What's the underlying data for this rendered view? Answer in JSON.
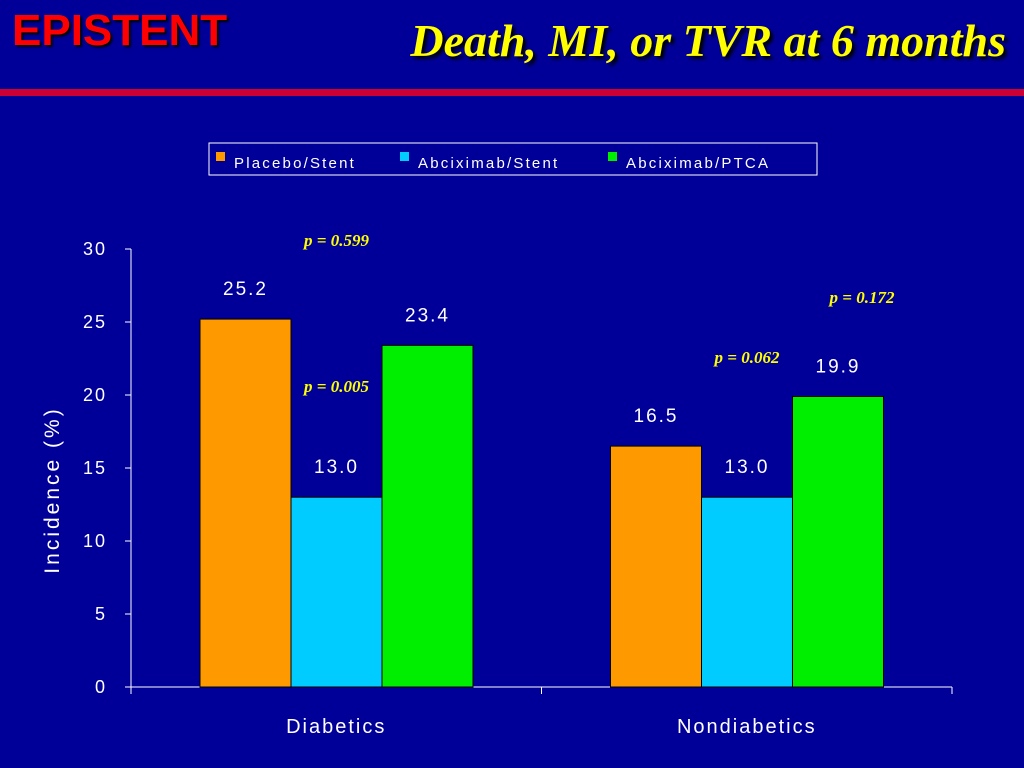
{
  "header": {
    "brand": "EPISTENT",
    "title": "Death, MI, or TVR at 6 months"
  },
  "colors": {
    "background": "#000099",
    "brand": "#ff0000",
    "title": "#ffff00",
    "rule": "#cc0033",
    "text": "#ffffff",
    "annotation": "#ffff00"
  },
  "chart_data": {
    "type": "bar",
    "title": "",
    "xlabel": "",
    "ylabel": "Incidence (%)",
    "ylim": [
      0,
      30
    ],
    "yticks": [
      "0",
      "5",
      "10",
      "15",
      "20",
      "25",
      "30"
    ],
    "categories": [
      "Diabetics",
      "Nondiabetics"
    ],
    "legend_position": "top",
    "grid": false,
    "series": [
      {
        "name": "Placebo/Stent",
        "color": "#ff9900",
        "values": [
          25.2,
          16.5
        ],
        "labels": [
          "25.2",
          "16.5"
        ]
      },
      {
        "name": "Abciximab/Stent",
        "color": "#00ccff",
        "values": [
          13.0,
          13.0
        ],
        "labels": [
          "13.0",
          "13.0"
        ]
      },
      {
        "name": "Abciximab/PTCA",
        "color": "#00ee00",
        "values": [
          23.4,
          19.9
        ],
        "labels": [
          "23.4",
          "19.9"
        ]
      }
    ],
    "annotations": [
      {
        "text": "p = 0.599",
        "category": 0,
        "anchor_value": 30.2,
        "near_series": 1
      },
      {
        "text": "p = 0.005",
        "category": 0,
        "anchor_value": 20.2,
        "near_series": 1
      },
      {
        "text": "p = 0.172",
        "category": 1,
        "anchor_value": 26.3,
        "near_series": 2
      },
      {
        "text": "p = 0.062",
        "category": 1,
        "anchor_value": 22.2,
        "near_series": 1
      }
    ]
  }
}
